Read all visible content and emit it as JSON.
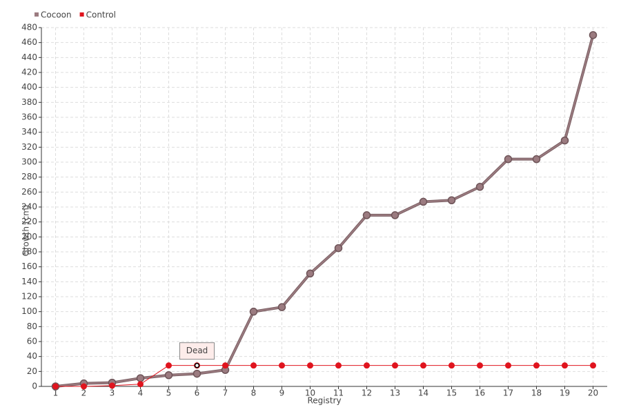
{
  "chart_data": {
    "type": "line",
    "x_label": "Registry",
    "y_label": "Growth (cm)",
    "categories": [
      "1",
      "2",
      "3",
      "4",
      "5",
      "6",
      "7",
      "8",
      "9",
      "10",
      "11",
      "12",
      "13",
      "14",
      "15",
      "16",
      "17",
      "18",
      "19",
      "20"
    ],
    "series": [
      {
        "name": "Cocoon",
        "color": "#9b7b80",
        "values": [
          0,
          4,
          5,
          11,
          15,
          17,
          22,
          100,
          106,
          151,
          185,
          229,
          229,
          247,
          249,
          267,
          304,
          304,
          329,
          470
        ]
      },
      {
        "name": "Control",
        "color": "#e0141e",
        "values": [
          0,
          0,
          1,
          3,
          28,
          28,
          28,
          28,
          28,
          28,
          28,
          28,
          28,
          28,
          28,
          28,
          28,
          28,
          28,
          28
        ]
      }
    ],
    "ylim": [
      0,
      480
    ],
    "yticks": [
      0,
      20,
      40,
      60,
      80,
      100,
      120,
      140,
      160,
      180,
      200,
      220,
      240,
      260,
      280,
      300,
      320,
      340,
      360,
      380,
      400,
      420,
      440,
      460,
      480
    ],
    "grid": true,
    "legend": "top-left",
    "annotations": [
      {
        "text": "Dead",
        "x": "6",
        "series": "Control"
      }
    ]
  }
}
